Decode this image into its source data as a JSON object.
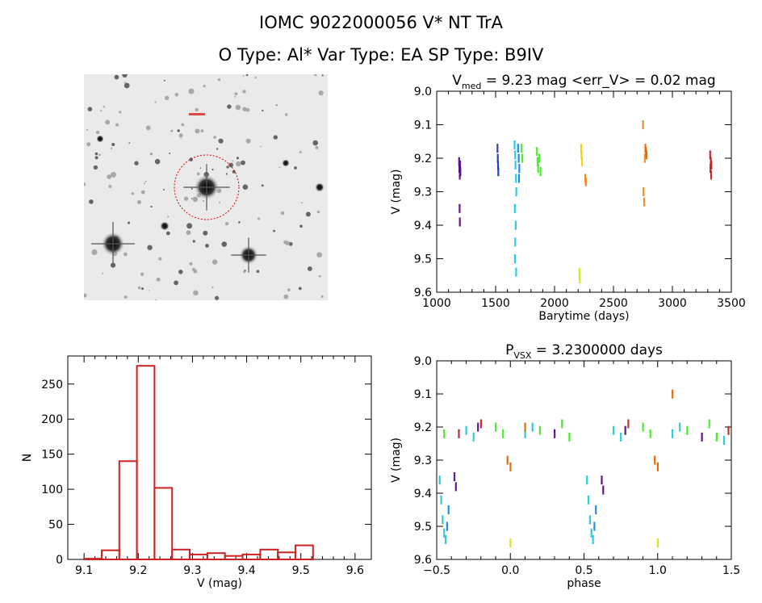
{
  "header": {
    "title": "IOMC 9022000056    V* NT TrA",
    "subtitle": "O Type: Al*  Var Type: EA   SP Type: B9IV"
  },
  "image_panel": {
    "marker_color": "#dd0000"
  },
  "chart_data": [
    {
      "id": "lightcurve",
      "type": "scatter",
      "title_prefix": "V",
      "title_sub": "med",
      "title_rest": " = 9.23 mag <err_V> = 0.02 mag",
      "xlabel": "Barytime (days)",
      "ylabel": "V (mag)",
      "xlim": [
        1000,
        3500
      ],
      "ylim": [
        9.6,
        9.0
      ],
      "xticks": [
        1000,
        1500,
        2000,
        2500,
        3000,
        3500
      ],
      "xtick_labels": [
        "1000",
        "1500",
        "2000",
        "2500",
        "3000",
        "3500"
      ],
      "yticks": [
        9.0,
        9.1,
        9.2,
        9.3,
        9.4,
        9.5,
        9.6
      ],
      "ytick_labels": [
        "9.0",
        "9.1",
        "9.2",
        "9.3",
        "9.4",
        "9.5",
        "9.6"
      ],
      "series": [
        {
          "name": "g1",
          "color": "#5b0f8a",
          "x": [
            1190,
            1192,
            1195,
            1197,
            1200,
            1194,
            1196
          ],
          "y": [
            9.21,
            9.23,
            9.25,
            9.22,
            9.24,
            9.35,
            9.39
          ]
        },
        {
          "name": "g2",
          "color": "#1f3fb4",
          "x": [
            1515,
            1518,
            1520,
            1522
          ],
          "y": [
            9.17,
            9.2,
            9.22,
            9.24
          ]
        },
        {
          "name": "g3",
          "color": "#22ccdd",
          "x": [
            1660,
            1665,
            1668,
            1672,
            1675,
            1662,
            1670,
            1666,
            1664,
            1673
          ],
          "y": [
            9.16,
            9.19,
            9.22,
            9.26,
            9.3,
            9.35,
            9.4,
            9.45,
            9.5,
            9.54
          ]
        },
        {
          "name": "g4",
          "color": "#1e88e5",
          "x": [
            1690,
            1695,
            1700,
            1698
          ],
          "y": [
            9.17,
            9.2,
            9.23,
            9.26
          ]
        },
        {
          "name": "g5",
          "color": "#44ee22",
          "x": [
            1720,
            1725,
            1850,
            1855,
            1860,
            1870,
            1880
          ],
          "y": [
            9.17,
            9.2,
            9.18,
            9.21,
            9.23,
            9.2,
            9.24
          ]
        },
        {
          "name": "g6",
          "color": "#ccee11",
          "x": [
            2210,
            2212
          ],
          "y": [
            9.54,
            9.56
          ]
        },
        {
          "name": "g7",
          "color": "#ffcc00",
          "x": [
            2225,
            2228,
            2232
          ],
          "y": [
            9.17,
            9.19,
            9.21
          ]
        },
        {
          "name": "g8",
          "color": "#ee8822",
          "x": [
            2260,
            2265,
            2750,
            2755,
            2760,
            2765
          ],
          "y": [
            9.26,
            9.27,
            9.1,
            9.3,
            9.33,
            9.2
          ]
        },
        {
          "name": "g9",
          "color": "#ee6600",
          "x": [
            2770,
            2775,
            2780
          ],
          "y": [
            9.17,
            9.18,
            9.19
          ]
        },
        {
          "name": "g10",
          "color": "#cc2222",
          "x": [
            3320,
            3325,
            3322,
            3328,
            3330
          ],
          "y": [
            9.19,
            9.21,
            9.23,
            9.25,
            9.22
          ]
        }
      ]
    },
    {
      "id": "histogram",
      "type": "bar",
      "xlabel": "V (mag)",
      "ylabel": "N",
      "xlim": [
        9.07,
        9.63
      ],
      "ylim": [
        0,
        290
      ],
      "xticks": [
        9.1,
        9.2,
        9.3,
        9.4,
        9.5,
        9.6
      ],
      "xtick_labels": [
        "9.1",
        "9.2",
        "9.3",
        "9.4",
        "9.5",
        "9.6"
      ],
      "yticks": [
        0,
        50,
        100,
        150,
        200,
        250
      ],
      "ytick_labels": [
        "0",
        "50",
        "100",
        "150",
        "200",
        "250"
      ],
      "bin_width": 0.0325,
      "bin_starts": [
        9.1,
        9.1325,
        9.165,
        9.1975,
        9.23,
        9.2625,
        9.295,
        9.3275,
        9.36,
        9.3925,
        9.425,
        9.4575,
        9.49,
        9.5225,
        9.555
      ],
      "values": [
        1,
        13,
        140,
        276,
        102,
        14,
        7,
        9,
        5,
        7,
        14,
        10,
        20,
        0,
        0
      ],
      "bar_color": "#cc2222"
    },
    {
      "id": "phased",
      "type": "scatter",
      "title_prefix": "P",
      "title_sub": "VSX",
      "title_rest": " = 3.2300000 days",
      "xlabel": "phase",
      "ylabel": "V (mag)",
      "xlim": [
        -0.5,
        1.5
      ],
      "ylim": [
        9.6,
        9.0
      ],
      "xticks": [
        -0.5,
        0.0,
        0.5,
        1.0,
        1.5
      ],
      "xtick_labels": [
        "−0.5",
        "0.0",
        "0.5",
        "1.0",
        "1.5"
      ],
      "yticks": [
        9.0,
        9.1,
        9.2,
        9.3,
        9.4,
        9.5,
        9.6
      ],
      "ytick_labels": [
        "9.0",
        "9.1",
        "9.2",
        "9.3",
        "9.4",
        "9.5",
        "9.6"
      ],
      "series": [
        {
          "name": "eclipse",
          "color": "#22ccdd",
          "x": [
            -0.48,
            -0.47,
            -0.46,
            -0.45,
            -0.44,
            0.52,
            0.53,
            0.54,
            0.55,
            0.56
          ],
          "y": [
            9.36,
            9.42,
            9.48,
            9.52,
            9.54,
            9.36,
            9.42,
            9.48,
            9.52,
            9.54
          ]
        },
        {
          "name": "eclipse2",
          "color": "#1e88e5",
          "x": [
            -0.43,
            -0.42,
            0.57,
            0.58
          ],
          "y": [
            9.5,
            9.45,
            9.5,
            9.45
          ]
        },
        {
          "name": "secondary",
          "color": "#5b0f8a",
          "x": [
            -0.38,
            -0.37,
            0.62,
            0.63,
            -0.22,
            0.78,
            0.3,
            1.3
          ],
          "y": [
            9.35,
            9.38,
            9.36,
            9.39,
            9.2,
            9.21,
            9.22,
            9.23
          ]
        },
        {
          "name": "green",
          "color": "#44ee22",
          "x": [
            -0.1,
            -0.05,
            0.2,
            0.35,
            0.4,
            0.9,
            0.95,
            1.2,
            1.35,
            1.4,
            -0.45
          ],
          "y": [
            9.2,
            9.22,
            9.21,
            9.19,
            9.23,
            9.2,
            9.22,
            9.21,
            9.19,
            9.23,
            9.22
          ]
        },
        {
          "name": "cyan",
          "color": "#22ccdd",
          "x": [
            -0.3,
            -0.25,
            0.1,
            0.15,
            0.7,
            0.75,
            1.1,
            1.15,
            1.45
          ],
          "y": [
            9.21,
            9.23,
            9.22,
            9.2,
            9.21,
            9.23,
            9.22,
            9.2,
            9.24
          ]
        },
        {
          "name": "orange",
          "color": "#ee6600",
          "x": [
            -0.02,
            0.0,
            0.1,
            0.98,
            1.0,
            1.1
          ],
          "y": [
            9.3,
            9.32,
            9.2,
            9.3,
            9.32,
            9.1
          ]
        },
        {
          "name": "yellow",
          "color": "#ccee11",
          "x": [
            0.0,
            1.0
          ],
          "y": [
            9.55,
            9.55
          ]
        },
        {
          "name": "red",
          "color": "#cc2222",
          "x": [
            -0.2,
            0.8,
            1.48,
            -0.35
          ],
          "y": [
            9.19,
            9.19,
            9.21,
            9.22
          ]
        }
      ]
    }
  ]
}
